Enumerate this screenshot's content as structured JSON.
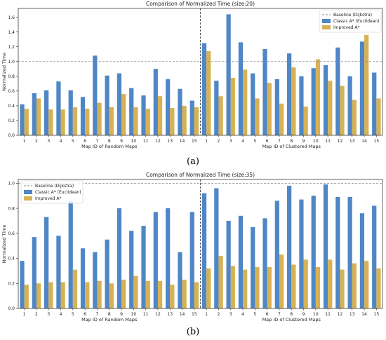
{
  "chart_data": [
    {
      "type": "bar",
      "panel_label": "(a)",
      "title": "Comparison of Normalized Time (size:20)",
      "ylabel": "Normalized Time",
      "ylim": [
        0,
        1.72
      ],
      "yticks": [
        "0.0",
        "0.2",
        "0.4",
        "0.6",
        "0.8",
        "1.0",
        "1.2",
        "1.4",
        "1.6"
      ],
      "baseline_value": 1.0,
      "legend_position": "top-right",
      "groups": [
        {
          "xlabel": "Map ID of Random Maps",
          "categories": [
            "1",
            "2",
            "3",
            "4",
            "5",
            "6",
            "7",
            "8",
            "9",
            "10",
            "11",
            "12",
            "13",
            "14",
            "15"
          ],
          "series": [
            {
              "name": "Classic A* (Euclidean)",
              "values": [
                0.42,
                0.57,
                0.61,
                0.73,
                0.61,
                0.52,
                1.08,
                0.81,
                0.84,
                0.64,
                0.54,
                0.9,
                0.76,
                0.63,
                0.47
              ]
            },
            {
              "name": "Improved A*",
              "values": [
                0.36,
                0.5,
                0.35,
                0.35,
                0.38,
                0.36,
                0.44,
                0.38,
                0.56,
                0.38,
                0.36,
                0.53,
                0.37,
                0.4,
                0.38
              ]
            }
          ]
        },
        {
          "xlabel": "Map ID of Clustered Maps",
          "categories": [
            "1",
            "2",
            "3",
            "4",
            "5",
            "6",
            "7",
            "8",
            "9",
            "10",
            "11",
            "12",
            "13",
            "14",
            "15"
          ],
          "series": [
            {
              "name": "Classic A* (Euclidean)",
              "values": [
                1.25,
                0.74,
                1.64,
                1.26,
                0.84,
                1.17,
                0.76,
                1.11,
                0.8,
                0.91,
                0.95,
                1.19,
                0.8,
                1.27,
                0.85
              ]
            },
            {
              "name": "Improved A*",
              "values": [
                1.14,
                0.53,
                0.78,
                0.89,
                0.5,
                0.71,
                0.43,
                0.92,
                0.39,
                1.03,
                0.74,
                0.67,
                0.48,
                1.36,
                0.5
              ]
            }
          ]
        }
      ],
      "legend": [
        "Baseline (Dijkstra)",
        "Classic A* (Euclidean)",
        "Improved A*"
      ]
    },
    {
      "type": "bar",
      "panel_label": "(b)",
      "title": "Comparison of Normalized Time (size:35)",
      "ylabel": "Normalized Time",
      "ylim": [
        0,
        1.03
      ],
      "yticks": [
        "0.0",
        "0.2",
        "0.4",
        "0.6",
        "0.8",
        "1.0"
      ],
      "baseline_value": 1.0,
      "legend_position": "top-left",
      "groups": [
        {
          "xlabel": "Map ID of Random Maps",
          "categories": [
            "1",
            "2",
            "3",
            "4",
            "5",
            "6",
            "7",
            "8",
            "9",
            "10",
            "11",
            "12",
            "13",
            "14",
            "15"
          ],
          "series": [
            {
              "name": "Classic A* (Euclidean)",
              "values": [
                0.38,
                0.57,
                0.73,
                0.58,
                0.86,
                0.48,
                0.45,
                0.55,
                0.8,
                0.62,
                0.66,
                0.77,
                0.8,
                0.45,
                0.77
              ]
            },
            {
              "name": "Improved A*",
              "values": [
                0.19,
                0.2,
                0.21,
                0.21,
                0.31,
                0.21,
                0.22,
                0.2,
                0.23,
                0.26,
                0.22,
                0.22,
                0.19,
                0.23,
                0.21
              ]
            }
          ]
        },
        {
          "xlabel": "Map ID of Clustered Maps",
          "categories": [
            "1",
            "2",
            "3",
            "4",
            "5",
            "6",
            "7",
            "8",
            "9",
            "10",
            "11",
            "12",
            "13",
            "14",
            "15"
          ],
          "series": [
            {
              "name": "Classic A* (Euclidean)",
              "values": [
                0.92,
                0.96,
                0.7,
                0.74,
                0.65,
                0.72,
                0.86,
                0.98,
                0.87,
                0.9,
                0.99,
                0.89,
                0.89,
                0.76,
                0.82
              ]
            },
            {
              "name": "Improved A*",
              "values": [
                0.32,
                0.42,
                0.34,
                0.31,
                0.33,
                0.33,
                0.43,
                0.35,
                0.39,
                0.33,
                0.39,
                0.31,
                0.36,
                0.38,
                0.32
              ]
            }
          ]
        }
      ],
      "legend": [
        "Baseline (Dijkstra)",
        "Classic A* (Euclidean)",
        "Improved A*"
      ]
    }
  ],
  "colors": {
    "classic": "#4f86c6",
    "improved": "#d6b255",
    "baseline": "#888888",
    "divider": "#333333"
  }
}
